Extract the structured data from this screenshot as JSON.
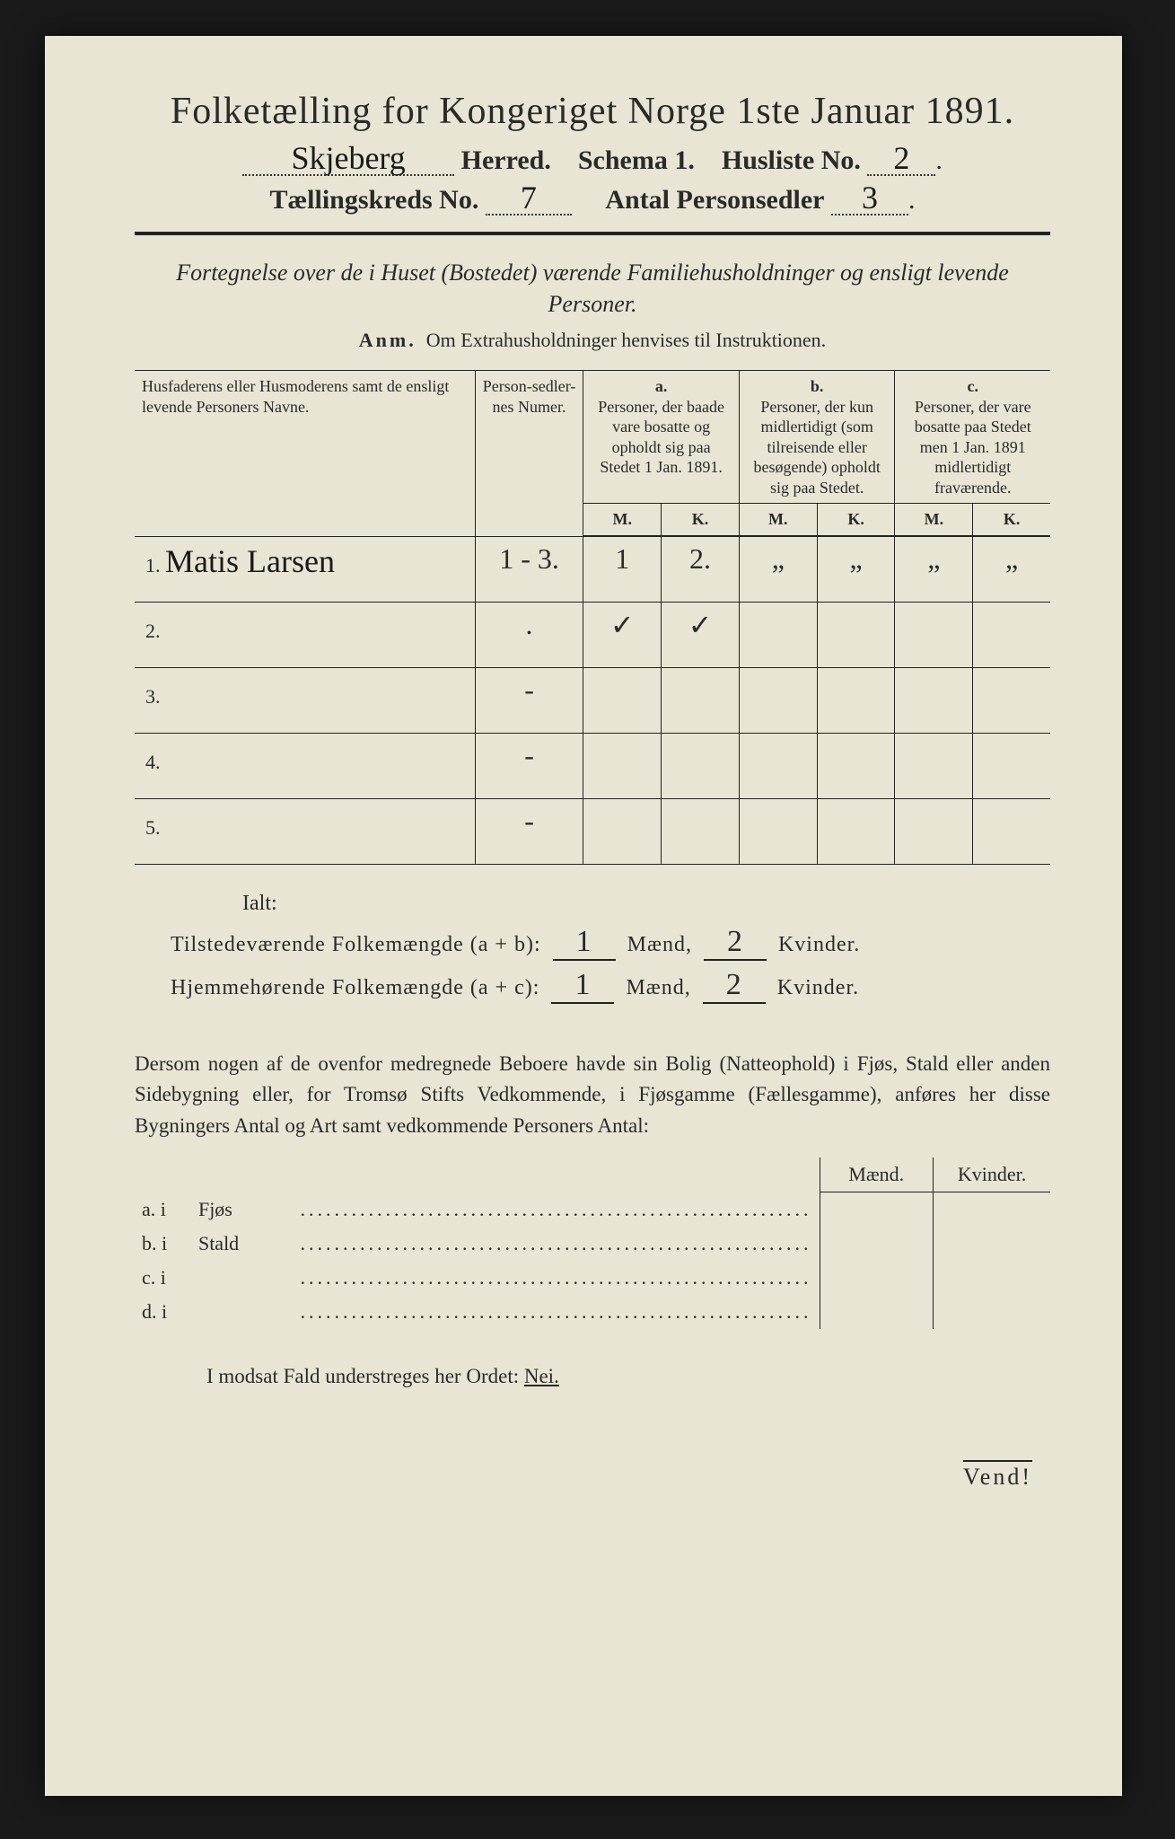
{
  "title": "Folketælling for Kongeriget Norge 1ste Januar 1891.",
  "header": {
    "herred_value": "Skjeberg",
    "herred_label": "Herred.",
    "schema_label": "Schema 1.",
    "husliste_label": "Husliste No.",
    "husliste_value": "2",
    "kreds_label": "Tællingskreds No.",
    "kreds_value": "7",
    "antal_label": "Antal Personsedler",
    "antal_value": "3"
  },
  "subtitle": "Fortegnelse over de i Huset (Bostedet) værende Familiehusholdninger og ensligt levende Personer.",
  "anm_label": "Anm.",
  "anm_text": "Om Extrahusholdninger henvises til Instruktionen.",
  "table": {
    "col_name": "Husfaderens eller Husmoderens samt de ensligt levende Personers Navne.",
    "col_num": "Person-sedler-nes Numer.",
    "col_a_label": "a.",
    "col_a_text": "Personer, der baade vare bosatte og opholdt sig paa Stedet 1 Jan. 1891.",
    "col_b_label": "b.",
    "col_b_text": "Personer, der kun midlertidigt (som tilreisende eller besøgende) opholdt sig paa Stedet.",
    "col_c_label": "c.",
    "col_c_text": "Personer, der vare bosatte paa Stedet men 1 Jan. 1891 midlertidigt fraværende.",
    "M": "M.",
    "K": "K.",
    "rows": [
      {
        "n": "1.",
        "name": "Matis Larsen",
        "num": "1 - 3.",
        "aM": "1",
        "aK": "2.",
        "bM": "„",
        "bK": "„",
        "cM": "„",
        "cK": "„"
      },
      {
        "n": "2.",
        "name": "",
        "num": ".",
        "aM": "✓",
        "aK": "✓",
        "bM": "",
        "bK": "",
        "cM": "",
        "cK": ""
      },
      {
        "n": "3.",
        "name": "",
        "num": "-",
        "aM": "",
        "aK": "",
        "bM": "",
        "bK": "",
        "cM": "",
        "cK": ""
      },
      {
        "n": "4.",
        "name": "",
        "num": "-",
        "aM": "",
        "aK": "",
        "bM": "",
        "bK": "",
        "cM": "",
        "cK": ""
      },
      {
        "n": "5.",
        "name": "",
        "num": "-",
        "aM": "",
        "aK": "",
        "bM": "",
        "bK": "",
        "cM": "",
        "cK": ""
      }
    ]
  },
  "ialt": "Ialt:",
  "sum1_label": "Tilstedeværende Folkemængde (a + b):",
  "sum2_label": "Hjemmehørende Folkemængde (a + c):",
  "maend": "Mænd,",
  "kvinder": "Kvinder.",
  "sum1_m": "1",
  "sum1_k": "2",
  "sum2_m": "1",
  "sum2_k": "2",
  "paragraph": "Dersom nogen af de ovenfor medregnede Beboere havde sin Bolig (Natteophold) i Fjøs, Stald eller anden Sidebygning eller, for Tromsø Stifts Vedkommende, i Fjøsgamme (Fællesgamme), anføres her disse Bygningers Antal og Art samt vedkommende Personers Antal:",
  "lodging": {
    "head_m": "Mænd.",
    "head_k": "Kvinder.",
    "rows": [
      {
        "lbl": "a.  i",
        "type": "Fjøs"
      },
      {
        "lbl": "b.  i",
        "type": "Stald"
      },
      {
        "lbl": "c.  i",
        "type": ""
      },
      {
        "lbl": "d.  i",
        "type": ""
      }
    ]
  },
  "nei_line_prefix": "I modsat Fald understreges her Ordet: ",
  "nei": "Nei.",
  "vend": "Vend!",
  "colors": {
    "paper": "#e8e5d4",
    "ink": "#2a2a2a",
    "outer": "#1a1a1a"
  }
}
